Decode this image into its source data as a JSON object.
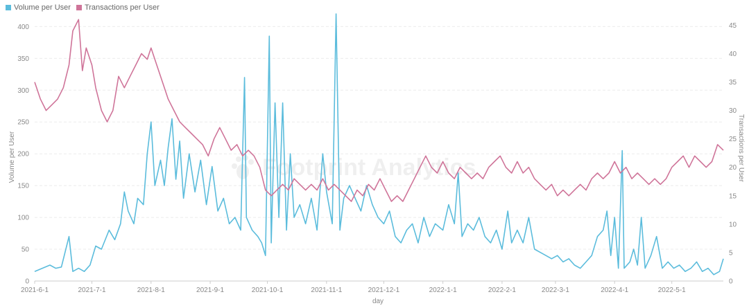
{
  "chart_data": {
    "type": "line",
    "xlabel": "day",
    "y_left": {
      "label": "Volume per User",
      "ticks": [
        0,
        50,
        100,
        150,
        200,
        250,
        300,
        350,
        400
      ],
      "ylim": [
        0,
        420
      ]
    },
    "y_right": {
      "label": "Transactions per User",
      "ticks": [
        0,
        5,
        10,
        15,
        20,
        25,
        30,
        35,
        40,
        45
      ],
      "ylim": [
        0,
        47
      ]
    },
    "x_ticks": [
      "2021-6-1",
      "2021-7-1",
      "2021-8-1",
      "2021-9-1",
      "2021-10-1",
      "2021-11-1",
      "2021-12-1",
      "2022-1-1",
      "2022-2-1",
      "2022-3-1",
      "2022-4-1",
      "2022-5-1"
    ],
    "x_start": "2021-6-1",
    "x_end": "2022-5-28",
    "grid": "horizontal dashed",
    "legend": "top-left",
    "series": [
      {
        "name": "Volume per User",
        "axis": "left",
        "color": "#5bbcdc",
        "points": [
          [
            "2021-06-01",
            15
          ],
          [
            "2021-06-05",
            20
          ],
          [
            "2021-06-09",
            25
          ],
          [
            "2021-06-12",
            20
          ],
          [
            "2021-06-15",
            22
          ],
          [
            "2021-06-19",
            70
          ],
          [
            "2021-06-21",
            15
          ],
          [
            "2021-06-24",
            20
          ],
          [
            "2021-06-27",
            15
          ],
          [
            "2021-06-30",
            25
          ],
          [
            "2021-07-03",
            55
          ],
          [
            "2021-07-06",
            50
          ],
          [
            "2021-07-10",
            80
          ],
          [
            "2021-07-13",
            65
          ],
          [
            "2021-07-16",
            90
          ],
          [
            "2021-07-18",
            140
          ],
          [
            "2021-07-20",
            110
          ],
          [
            "2021-07-23",
            90
          ],
          [
            "2021-07-25",
            130
          ],
          [
            "2021-07-28",
            120
          ],
          [
            "2021-07-30",
            200
          ],
          [
            "2021-08-01",
            250
          ],
          [
            "2021-08-03",
            150
          ],
          [
            "2021-08-06",
            190
          ],
          [
            "2021-08-08",
            150
          ],
          [
            "2021-08-10",
            210
          ],
          [
            "2021-08-12",
            255
          ],
          [
            "2021-08-14",
            160
          ],
          [
            "2021-08-16",
            220
          ],
          [
            "2021-08-18",
            130
          ],
          [
            "2021-08-21",
            200
          ],
          [
            "2021-08-24",
            140
          ],
          [
            "2021-08-27",
            190
          ],
          [
            "2021-08-30",
            120
          ],
          [
            "2021-09-02",
            180
          ],
          [
            "2021-09-05",
            110
          ],
          [
            "2021-09-08",
            130
          ],
          [
            "2021-09-11",
            90
          ],
          [
            "2021-09-14",
            100
          ],
          [
            "2021-09-17",
            80
          ],
          [
            "2021-09-19",
            320
          ],
          [
            "2021-09-20",
            100
          ],
          [
            "2021-09-23",
            80
          ],
          [
            "2021-09-26",
            70
          ],
          [
            "2021-09-28",
            60
          ],
          [
            "2021-09-30",
            40
          ],
          [
            "2021-10-02",
            385
          ],
          [
            "2021-10-03",
            60
          ],
          [
            "2021-10-05",
            280
          ],
          [
            "2021-10-07",
            100
          ],
          [
            "2021-10-09",
            280
          ],
          [
            "2021-10-11",
            80
          ],
          [
            "2021-10-13",
            200
          ],
          [
            "2021-10-15",
            100
          ],
          [
            "2021-10-18",
            120
          ],
          [
            "2021-10-21",
            90
          ],
          [
            "2021-10-24",
            130
          ],
          [
            "2021-10-27",
            80
          ],
          [
            "2021-10-30",
            200
          ],
          [
            "2021-11-01",
            140
          ],
          [
            "2021-11-04",
            90
          ],
          [
            "2021-11-06",
            420
          ],
          [
            "2021-11-08",
            80
          ],
          [
            "2021-11-10",
            130
          ],
          [
            "2021-11-13",
            150
          ],
          [
            "2021-11-16",
            130
          ],
          [
            "2021-11-19",
            110
          ],
          [
            "2021-11-22",
            150
          ],
          [
            "2021-11-25",
            120
          ],
          [
            "2021-11-28",
            100
          ],
          [
            "2021-12-01",
            90
          ],
          [
            "2021-12-04",
            110
          ],
          [
            "2021-12-07",
            70
          ],
          [
            "2021-12-10",
            60
          ],
          [
            "2021-12-13",
            80
          ],
          [
            "2021-12-16",
            90
          ],
          [
            "2021-12-19",
            60
          ],
          [
            "2021-12-22",
            100
          ],
          [
            "2021-12-25",
            70
          ],
          [
            "2021-12-28",
            90
          ],
          [
            "2022-01-01",
            80
          ],
          [
            "2022-01-04",
            120
          ],
          [
            "2022-01-07",
            90
          ],
          [
            "2022-01-09",
            170
          ],
          [
            "2022-01-11",
            70
          ],
          [
            "2022-01-14",
            90
          ],
          [
            "2022-01-17",
            80
          ],
          [
            "2022-01-20",
            100
          ],
          [
            "2022-01-23",
            70
          ],
          [
            "2022-01-26",
            60
          ],
          [
            "2022-01-29",
            80
          ],
          [
            "2022-02-01",
            50
          ],
          [
            "2022-02-04",
            110
          ],
          [
            "2022-02-06",
            60
          ],
          [
            "2022-02-09",
            80
          ],
          [
            "2022-02-12",
            60
          ],
          [
            "2022-02-15",
            100
          ],
          [
            "2022-02-18",
            50
          ],
          [
            "2022-02-21",
            45
          ],
          [
            "2022-02-24",
            40
          ],
          [
            "2022-02-27",
            35
          ],
          [
            "2022-03-02",
            40
          ],
          [
            "2022-03-05",
            30
          ],
          [
            "2022-03-08",
            35
          ],
          [
            "2022-03-11",
            25
          ],
          [
            "2022-03-14",
            20
          ],
          [
            "2022-03-17",
            30
          ],
          [
            "2022-03-20",
            40
          ],
          [
            "2022-03-23",
            70
          ],
          [
            "2022-03-26",
            80
          ],
          [
            "2022-03-28",
            110
          ],
          [
            "2022-03-30",
            40
          ],
          [
            "2022-04-01",
            100
          ],
          [
            "2022-04-03",
            20
          ],
          [
            "2022-04-05",
            205
          ],
          [
            "2022-04-06",
            20
          ],
          [
            "2022-04-09",
            30
          ],
          [
            "2022-04-11",
            50
          ],
          [
            "2022-04-13",
            25
          ],
          [
            "2022-04-15",
            100
          ],
          [
            "2022-04-17",
            20
          ],
          [
            "2022-04-20",
            40
          ],
          [
            "2022-04-23",
            70
          ],
          [
            "2022-04-26",
            20
          ],
          [
            "2022-04-29",
            30
          ],
          [
            "2022-05-02",
            20
          ],
          [
            "2022-05-05",
            25
          ],
          [
            "2022-05-08",
            15
          ],
          [
            "2022-05-11",
            20
          ],
          [
            "2022-05-14",
            30
          ],
          [
            "2022-05-17",
            15
          ],
          [
            "2022-05-20",
            20
          ],
          [
            "2022-05-23",
            10
          ],
          [
            "2022-05-26",
            15
          ],
          [
            "2022-05-28",
            35
          ]
        ]
      },
      {
        "name": "Transactions per User",
        "axis": "right",
        "color": "#cf7499",
        "points": [
          [
            "2021-06-01",
            35
          ],
          [
            "2021-06-04",
            32
          ],
          [
            "2021-06-07",
            30
          ],
          [
            "2021-06-10",
            31
          ],
          [
            "2021-06-13",
            32
          ],
          [
            "2021-06-16",
            34
          ],
          [
            "2021-06-19",
            38
          ],
          [
            "2021-06-21",
            44
          ],
          [
            "2021-06-24",
            46
          ],
          [
            "2021-06-26",
            37
          ],
          [
            "2021-06-28",
            41
          ],
          [
            "2021-07-01",
            38
          ],
          [
            "2021-07-03",
            34
          ],
          [
            "2021-07-06",
            30
          ],
          [
            "2021-07-09",
            28
          ],
          [
            "2021-07-12",
            30
          ],
          [
            "2021-07-15",
            36
          ],
          [
            "2021-07-18",
            34
          ],
          [
            "2021-07-21",
            36
          ],
          [
            "2021-07-24",
            38
          ],
          [
            "2021-07-27",
            40
          ],
          [
            "2021-07-30",
            39
          ],
          [
            "2021-08-01",
            41
          ],
          [
            "2021-08-04",
            38
          ],
          [
            "2021-08-07",
            35
          ],
          [
            "2021-08-10",
            32
          ],
          [
            "2021-08-13",
            30
          ],
          [
            "2021-08-16",
            28
          ],
          [
            "2021-08-19",
            27
          ],
          [
            "2021-08-22",
            26
          ],
          [
            "2021-08-25",
            25
          ],
          [
            "2021-08-28",
            24
          ],
          [
            "2021-08-31",
            22
          ],
          [
            "2021-09-03",
            25
          ],
          [
            "2021-09-06",
            27
          ],
          [
            "2021-09-09",
            25
          ],
          [
            "2021-09-12",
            23
          ],
          [
            "2021-09-15",
            24
          ],
          [
            "2021-09-18",
            22
          ],
          [
            "2021-09-21",
            23
          ],
          [
            "2021-09-24",
            22
          ],
          [
            "2021-09-27",
            20
          ],
          [
            "2021-09-30",
            16
          ],
          [
            "2021-10-03",
            15
          ],
          [
            "2021-10-06",
            16
          ],
          [
            "2021-10-09",
            17
          ],
          [
            "2021-10-12",
            16
          ],
          [
            "2021-10-15",
            18
          ],
          [
            "2021-10-18",
            17
          ],
          [
            "2021-10-21",
            16
          ],
          [
            "2021-10-24",
            17
          ],
          [
            "2021-10-27",
            16
          ],
          [
            "2021-10-30",
            18
          ],
          [
            "2021-11-02",
            16
          ],
          [
            "2021-11-05",
            17
          ],
          [
            "2021-11-08",
            16
          ],
          [
            "2021-11-11",
            15
          ],
          [
            "2021-11-14",
            14
          ],
          [
            "2021-11-17",
            16
          ],
          [
            "2021-11-20",
            15
          ],
          [
            "2021-11-23",
            17
          ],
          [
            "2021-11-26",
            16
          ],
          [
            "2021-11-29",
            18
          ],
          [
            "2021-12-02",
            16
          ],
          [
            "2021-12-05",
            14
          ],
          [
            "2021-12-08",
            15
          ],
          [
            "2021-12-11",
            14
          ],
          [
            "2021-12-14",
            16
          ],
          [
            "2021-12-17",
            18
          ],
          [
            "2021-12-20",
            20
          ],
          [
            "2021-12-23",
            22
          ],
          [
            "2021-12-26",
            20
          ],
          [
            "2021-12-29",
            19
          ],
          [
            "2022-01-01",
            21
          ],
          [
            "2022-01-04",
            19
          ],
          [
            "2022-01-07",
            18
          ],
          [
            "2022-01-10",
            20
          ],
          [
            "2022-01-13",
            19
          ],
          [
            "2022-01-16",
            18
          ],
          [
            "2022-01-19",
            19
          ],
          [
            "2022-01-22",
            18
          ],
          [
            "2022-01-25",
            20
          ],
          [
            "2022-01-28",
            21
          ],
          [
            "2022-01-31",
            22
          ],
          [
            "2022-02-03",
            20
          ],
          [
            "2022-02-06",
            19
          ],
          [
            "2022-02-09",
            21
          ],
          [
            "2022-02-12",
            19
          ],
          [
            "2022-02-15",
            20
          ],
          [
            "2022-02-18",
            18
          ],
          [
            "2022-02-21",
            17
          ],
          [
            "2022-02-24",
            16
          ],
          [
            "2022-02-27",
            17
          ],
          [
            "2022-03-02",
            15
          ],
          [
            "2022-03-05",
            16
          ],
          [
            "2022-03-08",
            15
          ],
          [
            "2022-03-11",
            16
          ],
          [
            "2022-03-14",
            17
          ],
          [
            "2022-03-17",
            16
          ],
          [
            "2022-03-20",
            18
          ],
          [
            "2022-03-23",
            19
          ],
          [
            "2022-03-26",
            18
          ],
          [
            "2022-03-29",
            19
          ],
          [
            "2022-04-01",
            21
          ],
          [
            "2022-04-04",
            19
          ],
          [
            "2022-04-07",
            20
          ],
          [
            "2022-04-10",
            18
          ],
          [
            "2022-04-13",
            19
          ],
          [
            "2022-04-16",
            18
          ],
          [
            "2022-04-19",
            17
          ],
          [
            "2022-04-22",
            18
          ],
          [
            "2022-04-25",
            17
          ],
          [
            "2022-04-28",
            18
          ],
          [
            "2022-05-01",
            20
          ],
          [
            "2022-05-04",
            21
          ],
          [
            "2022-05-07",
            22
          ],
          [
            "2022-05-10",
            20
          ],
          [
            "2022-05-13",
            22
          ],
          [
            "2022-05-16",
            21
          ],
          [
            "2022-05-19",
            20
          ],
          [
            "2022-05-22",
            21
          ],
          [
            "2022-05-25",
            24
          ],
          [
            "2022-05-28",
            23
          ]
        ]
      }
    ]
  },
  "watermark": {
    "text": "Footprint Analytics",
    "icon": "footprint-logo-icon"
  }
}
